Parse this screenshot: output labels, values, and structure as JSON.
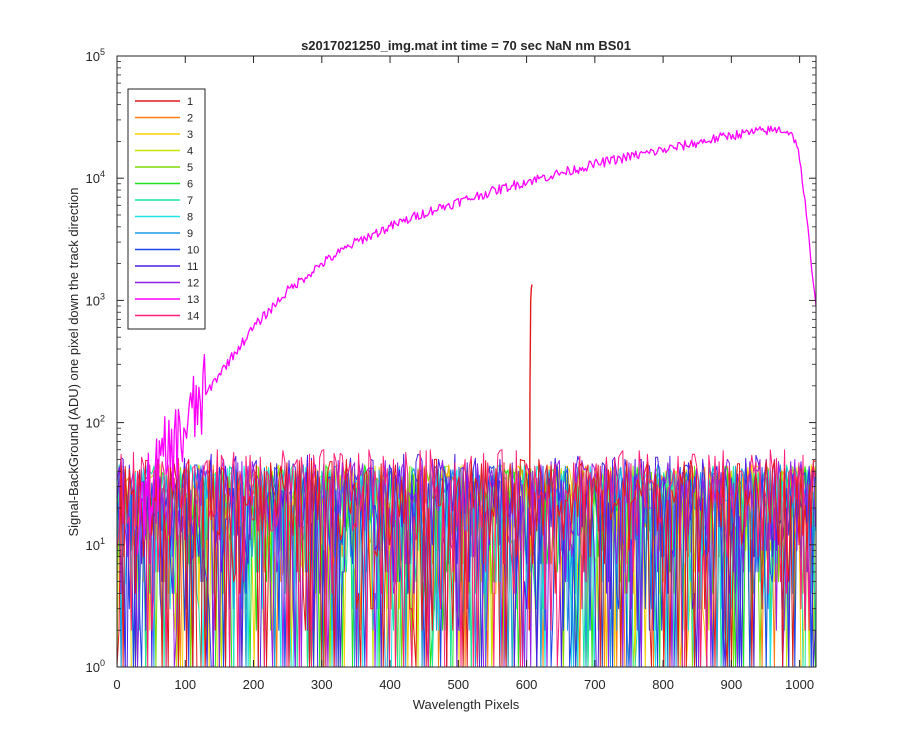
{
  "chart_data": {
    "type": "line",
    "title": "s2017021250_img.mat int time = 70 sec  NaN nm BS01",
    "xlabel": "Wavelength Pixels",
    "ylabel": "Signal-BackGround (ADU) one pixel down the track direction",
    "xlim": [
      0,
      1024
    ],
    "ylim": [
      1,
      100000
    ],
    "yscale": "log",
    "grid": false,
    "legend_position": "top-left",
    "x_ticks": [
      0,
      100,
      200,
      300,
      400,
      500,
      600,
      700,
      800,
      900,
      1000
    ],
    "y_ticks": [
      {
        "value": 1,
        "base": "10",
        "exp": "0"
      },
      {
        "value": 10,
        "base": "10",
        "exp": "1"
      },
      {
        "value": 100,
        "base": "10",
        "exp": "2"
      },
      {
        "value": 1000,
        "base": "10",
        "exp": "3"
      },
      {
        "value": 10000,
        "base": "10",
        "exp": "4"
      },
      {
        "value": 100000,
        "base": "10",
        "exp": "5"
      }
    ],
    "series": [
      {
        "name": "1",
        "color": "#e31a1c",
        "noise_max": 50,
        "peak": {
          "x": [
            604,
            605,
            606,
            607,
            608
          ],
          "y": [
            2,
            200,
            1000,
            1250,
            1350
          ]
        }
      },
      {
        "name": "2",
        "color": "#ff7f0e",
        "noise_max": 45
      },
      {
        "name": "3",
        "color": "#f5d000",
        "noise_max": 45
      },
      {
        "name": "4",
        "color": "#c8e600",
        "noise_max": 45
      },
      {
        "name": "5",
        "color": "#7ddc00",
        "noise_max": 45
      },
      {
        "name": "6",
        "color": "#1ee61e",
        "noise_max": 45
      },
      {
        "name": "7",
        "color": "#19e6a0",
        "noise_max": 45
      },
      {
        "name": "8",
        "color": "#1ee6e6",
        "noise_max": 45
      },
      {
        "name": "9",
        "color": "#1e9be6",
        "noise_max": 45
      },
      {
        "name": "10",
        "color": "#1e46e6",
        "noise_max": 45
      },
      {
        "name": "11",
        "color": "#4b1ee6",
        "noise_max": 55
      },
      {
        "name": "12",
        "color": "#961ee6",
        "noise_max": 50
      },
      {
        "name": "13",
        "color": "#ff00ff",
        "curve": {
          "x": [
            30,
            50,
            70,
            90,
            100,
            120,
            150,
            200,
            250,
            300,
            350,
            400,
            450,
            500,
            550,
            600,
            650,
            700,
            750,
            800,
            850,
            900,
            950,
            975,
            990,
            1000,
            1010,
            1020,
            1024
          ],
          "y": [
            15,
            30,
            50,
            70,
            90,
            140,
            250,
            600,
            1200,
            2000,
            3000,
            4000,
            5200,
            6400,
            7800,
            9400,
            11000,
            13000,
            15000,
            17000,
            19500,
            22500,
            24500,
            25000,
            23000,
            15000,
            5000,
            1300,
            900
          ]
        }
      },
      {
        "name": "14",
        "color": "#ff1e78",
        "noise_max": 60
      }
    ]
  }
}
